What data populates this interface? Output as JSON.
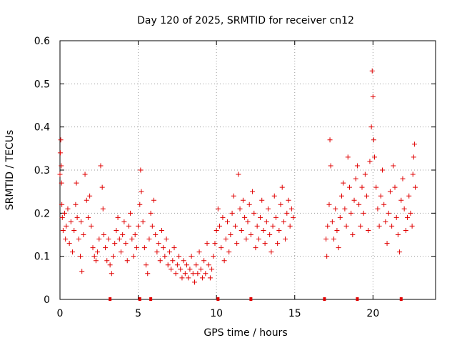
{
  "chart_data": {
    "type": "scatter",
    "title": "Day 120 of 2025, SRMTID for receiver cn12",
    "xlabel": "GPS time / hours",
    "ylabel": "SRMTID / TECUs",
    "xlim": [
      0,
      24
    ],
    "ylim": [
      0,
      0.6
    ],
    "x_ticks": [
      0,
      5,
      10,
      15,
      20
    ],
    "x_tick_labels": [
      "0",
      "5",
      "10",
      "15",
      "20"
    ],
    "y_ticks": [
      0,
      0.1,
      0.2,
      0.3,
      0.4,
      0.5,
      0.6
    ],
    "y_tick_labels": [
      "0",
      "0.1",
      "0.2",
      "0.3",
      "0.4",
      "0.5",
      "0.6"
    ],
    "grid": true,
    "marker": "+",
    "color": "#e00000",
    "series": [
      {
        "name": "SRMTID",
        "points": [
          [
            0.0,
            0.29
          ],
          [
            0.02,
            0.34
          ],
          [
            0.05,
            0.37
          ],
          [
            0.08,
            0.31
          ],
          [
            0.1,
            0.27
          ],
          [
            0.12,
            0.22
          ],
          [
            0.15,
            0.19
          ],
          [
            0.2,
            0.16
          ],
          [
            0.3,
            0.2
          ],
          [
            0.35,
            0.14
          ],
          [
            0.4,
            0.17
          ],
          [
            0.5,
            0.21
          ],
          [
            0.6,
            0.13
          ],
          [
            0.7,
            0.18
          ],
          [
            0.8,
            0.11
          ],
          [
            0.9,
            0.16
          ],
          [
            1.0,
            0.22
          ],
          [
            1.05,
            0.27
          ],
          [
            1.1,
            0.19
          ],
          [
            1.2,
            0.14
          ],
          [
            1.3,
            0.1
          ],
          [
            1.35,
            0.18
          ],
          [
            1.4,
            0.065
          ],
          [
            1.5,
            0.15
          ],
          [
            1.6,
            0.29
          ],
          [
            1.7,
            0.23
          ],
          [
            1.8,
            0.19
          ],
          [
            1.9,
            0.24
          ],
          [
            2.0,
            0.17
          ],
          [
            2.1,
            0.12
          ],
          [
            2.2,
            0.1
          ],
          [
            2.3,
            0.09
          ],
          [
            2.4,
            0.11
          ],
          [
            2.5,
            0.14
          ],
          [
            2.6,
            0.31
          ],
          [
            2.7,
            0.26
          ],
          [
            2.75,
            0.21
          ],
          [
            2.8,
            0.15
          ],
          [
            2.9,
            0.12
          ],
          [
            3.0,
            0.09
          ],
          [
            3.1,
            0.14
          ],
          [
            3.2,
            0.08
          ],
          [
            3.3,
            0.06
          ],
          [
            3.4,
            0.1
          ],
          [
            3.5,
            0.13
          ],
          [
            3.6,
            0.16
          ],
          [
            3.7,
            0.19
          ],
          [
            3.8,
            0.14
          ],
          [
            3.9,
            0.11
          ],
          [
            4.0,
            0.15
          ],
          [
            4.1,
            0.18
          ],
          [
            4.2,
            0.13
          ],
          [
            4.3,
            0.09
          ],
          [
            4.4,
            0.17
          ],
          [
            4.5,
            0.2
          ],
          [
            4.6,
            0.14
          ],
          [
            4.7,
            0.1
          ],
          [
            4.8,
            0.15
          ],
          [
            4.9,
            0.12
          ],
          [
            5.0,
            0.17
          ],
          [
            5.1,
            0.22
          ],
          [
            5.15,
            0.3
          ],
          [
            5.2,
            0.25
          ],
          [
            5.3,
            0.18
          ],
          [
            5.4,
            0.12
          ],
          [
            5.5,
            0.08
          ],
          [
            5.6,
            0.06
          ],
          [
            5.7,
            0.14
          ],
          [
            5.8,
            0.2
          ],
          [
            5.9,
            0.17
          ],
          [
            6.0,
            0.23
          ],
          [
            6.1,
            0.15
          ],
          [
            6.2,
            0.11
          ],
          [
            6.3,
            0.13
          ],
          [
            6.4,
            0.09
          ],
          [
            6.5,
            0.16
          ],
          [
            6.6,
            0.12
          ],
          [
            6.7,
            0.1
          ],
          [
            6.8,
            0.14
          ],
          [
            6.9,
            0.08
          ],
          [
            7.0,
            0.11
          ],
          [
            7.1,
            0.07
          ],
          [
            7.2,
            0.09
          ],
          [
            7.3,
            0.12
          ],
          [
            7.4,
            0.06
          ],
          [
            7.5,
            0.08
          ],
          [
            7.6,
            0.1
          ],
          [
            7.7,
            0.07
          ],
          [
            7.8,
            0.05
          ],
          [
            7.9,
            0.09
          ],
          [
            8.0,
            0.06
          ],
          [
            8.1,
            0.08
          ],
          [
            8.2,
            0.05
          ],
          [
            8.3,
            0.07
          ],
          [
            8.4,
            0.1
          ],
          [
            8.5,
            0.06
          ],
          [
            8.6,
            0.04
          ],
          [
            8.7,
            0.08
          ],
          [
            8.8,
            0.06
          ],
          [
            8.9,
            0.11
          ],
          [
            9.0,
            0.07
          ],
          [
            9.1,
            0.05
          ],
          [
            9.2,
            0.09
          ],
          [
            9.3,
            0.06
          ],
          [
            9.4,
            0.13
          ],
          [
            9.5,
            0.08
          ],
          [
            9.6,
            0.05
          ],
          [
            9.7,
            0.07
          ],
          [
            9.8,
            0.1
          ],
          [
            9.9,
            0.13
          ],
          [
            10.0,
            0.16
          ],
          [
            10.1,
            0.21
          ],
          [
            10.2,
            0.17
          ],
          [
            10.3,
            0.12
          ],
          [
            10.4,
            0.19
          ],
          [
            10.5,
            0.09
          ],
          [
            10.6,
            0.14
          ],
          [
            10.7,
            0.18
          ],
          [
            10.8,
            0.11
          ],
          [
            10.9,
            0.15
          ],
          [
            11.0,
            0.2
          ],
          [
            11.1,
            0.24
          ],
          [
            11.2,
            0.17
          ],
          [
            11.3,
            0.13
          ],
          [
            11.4,
            0.29
          ],
          [
            11.5,
            0.21
          ],
          [
            11.6,
            0.16
          ],
          [
            11.7,
            0.23
          ],
          [
            11.8,
            0.19
          ],
          [
            11.9,
            0.14
          ],
          [
            12.0,
            0.18
          ],
          [
            12.1,
            0.22
          ],
          [
            12.2,
            0.15
          ],
          [
            12.3,
            0.25
          ],
          [
            12.4,
            0.2
          ],
          [
            12.5,
            0.12
          ],
          [
            12.6,
            0.17
          ],
          [
            12.7,
            0.14
          ],
          [
            12.8,
            0.19
          ],
          [
            12.9,
            0.23
          ],
          [
            13.0,
            0.16
          ],
          [
            13.1,
            0.13
          ],
          [
            13.2,
            0.18
          ],
          [
            13.3,
            0.21
          ],
          [
            13.4,
            0.15
          ],
          [
            13.5,
            0.11
          ],
          [
            13.6,
            0.17
          ],
          [
            13.7,
            0.24
          ],
          [
            13.8,
            0.19
          ],
          [
            13.9,
            0.13
          ],
          [
            14.0,
            0.16
          ],
          [
            14.1,
            0.22
          ],
          [
            14.2,
            0.26
          ],
          [
            14.3,
            0.18
          ],
          [
            14.4,
            0.14
          ],
          [
            14.5,
            0.2
          ],
          [
            14.6,
            0.23
          ],
          [
            14.7,
            0.17
          ],
          [
            14.8,
            0.21
          ],
          [
            14.9,
            0.19
          ],
          [
            17.0,
            0.14
          ],
          [
            17.05,
            0.1
          ],
          [
            17.1,
            0.17
          ],
          [
            17.2,
            0.22
          ],
          [
            17.25,
            0.37
          ],
          [
            17.3,
            0.31
          ],
          [
            17.4,
            0.18
          ],
          [
            17.5,
            0.14
          ],
          [
            17.6,
            0.21
          ],
          [
            17.7,
            0.16
          ],
          [
            17.8,
            0.12
          ],
          [
            17.9,
            0.19
          ],
          [
            18.0,
            0.24
          ],
          [
            18.1,
            0.27
          ],
          [
            18.2,
            0.21
          ],
          [
            18.3,
            0.17
          ],
          [
            18.4,
            0.33
          ],
          [
            18.5,
            0.26
          ],
          [
            18.6,
            0.2
          ],
          [
            18.7,
            0.15
          ],
          [
            18.8,
            0.23
          ],
          [
            18.9,
            0.28
          ],
          [
            19.0,
            0.31
          ],
          [
            19.1,
            0.22
          ],
          [
            19.2,
            0.17
          ],
          [
            19.3,
            0.26
          ],
          [
            19.4,
            0.2
          ],
          [
            19.5,
            0.29
          ],
          [
            19.6,
            0.24
          ],
          [
            19.7,
            0.16
          ],
          [
            19.8,
            0.32
          ],
          [
            19.9,
            0.4
          ],
          [
            19.95,
            0.53
          ],
          [
            20.0,
            0.47
          ],
          [
            20.05,
            0.37
          ],
          [
            20.1,
            0.33
          ],
          [
            20.2,
            0.26
          ],
          [
            20.3,
            0.21
          ],
          [
            20.4,
            0.17
          ],
          [
            20.5,
            0.24
          ],
          [
            20.6,
            0.3
          ],
          [
            20.7,
            0.22
          ],
          [
            20.8,
            0.18
          ],
          [
            20.9,
            0.13
          ],
          [
            21.0,
            0.2
          ],
          [
            21.1,
            0.25
          ],
          [
            21.2,
            0.17
          ],
          [
            21.3,
            0.31
          ],
          [
            21.4,
            0.26
          ],
          [
            21.5,
            0.19
          ],
          [
            21.6,
            0.15
          ],
          [
            21.7,
            0.11
          ],
          [
            21.8,
            0.23
          ],
          [
            21.9,
            0.28
          ],
          [
            22.0,
            0.21
          ],
          [
            22.1,
            0.16
          ],
          [
            22.2,
            0.19
          ],
          [
            22.3,
            0.24
          ],
          [
            22.4,
            0.2
          ],
          [
            22.5,
            0.17
          ],
          [
            22.55,
            0.29
          ],
          [
            22.6,
            0.33
          ],
          [
            22.65,
            0.36
          ],
          [
            22.7,
            0.26
          ]
        ]
      }
    ],
    "baseline_markers": [
      3.2,
      5.1,
      5.8,
      10.1,
      12.2,
      16.9,
      19.0,
      21.8
    ]
  }
}
